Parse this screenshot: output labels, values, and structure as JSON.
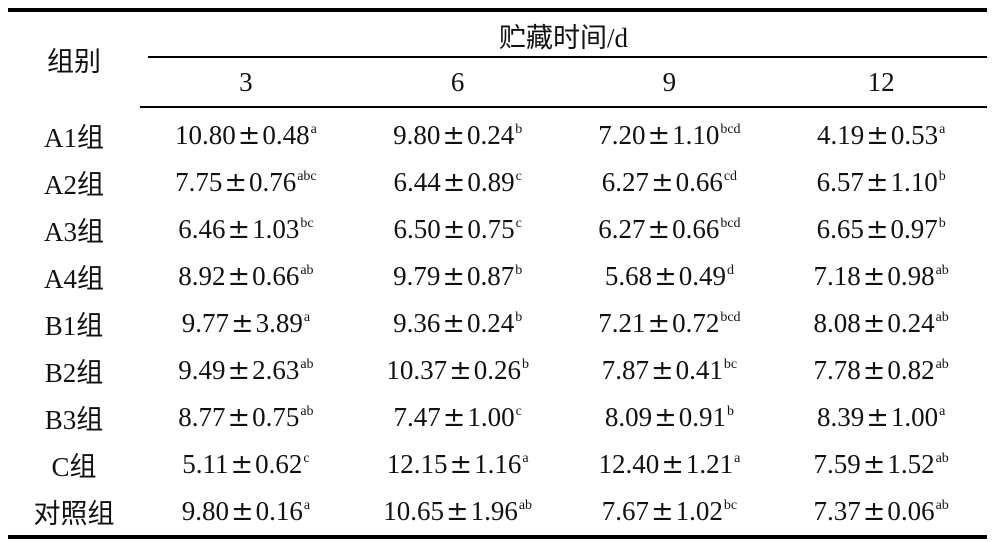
{
  "table": {
    "group_header": "组别",
    "time_header": "贮藏时间/d",
    "days": [
      "3",
      "6",
      "9",
      "12"
    ],
    "rows": [
      {
        "group": "A1组",
        "cells": [
          {
            "mean": "10.80",
            "sd": "0.48",
            "sig": "a"
          },
          {
            "mean": "9.80",
            "sd": "0.24",
            "sig": "b"
          },
          {
            "mean": "7.20",
            "sd": "1.10",
            "sig": "bcd"
          },
          {
            "mean": "4.19",
            "sd": "0.53",
            "sig": "a"
          }
        ]
      },
      {
        "group": "A2组",
        "cells": [
          {
            "mean": "7.75",
            "sd": "0.76",
            "sig": "abc"
          },
          {
            "mean": "6.44",
            "sd": "0.89",
            "sig": "c"
          },
          {
            "mean": "6.27",
            "sd": "0.66",
            "sig": "cd"
          },
          {
            "mean": "6.57",
            "sd": "1.10",
            "sig": "b"
          }
        ]
      },
      {
        "group": "A3组",
        "cells": [
          {
            "mean": "6.46",
            "sd": "1.03",
            "sig": "bc"
          },
          {
            "mean": "6.50",
            "sd": "0.75",
            "sig": "c"
          },
          {
            "mean": "6.27",
            "sd": "0.66",
            "sig": "bcd"
          },
          {
            "mean": "6.65",
            "sd": "0.97",
            "sig": "b"
          }
        ]
      },
      {
        "group": "A4组",
        "cells": [
          {
            "mean": "8.92",
            "sd": "0.66",
            "sig": "ab"
          },
          {
            "mean": "9.79",
            "sd": "0.87",
            "sig": "b"
          },
          {
            "mean": "5.68",
            "sd": "0.49",
            "sig": "d"
          },
          {
            "mean": "7.18",
            "sd": "0.98",
            "sig": "ab"
          }
        ]
      },
      {
        "group": "B1组",
        "cells": [
          {
            "mean": "9.77",
            "sd": "3.89",
            "sig": "a"
          },
          {
            "mean": "9.36",
            "sd": "0.24",
            "sig": "b"
          },
          {
            "mean": "7.21",
            "sd": "0.72",
            "sig": "bcd"
          },
          {
            "mean": "8.08",
            "sd": "0.24",
            "sig": "ab"
          }
        ]
      },
      {
        "group": "B2组",
        "cells": [
          {
            "mean": "9.49",
            "sd": "2.63",
            "sig": "ab"
          },
          {
            "mean": "10.37",
            "sd": "0.26",
            "sig": "b"
          },
          {
            "mean": "7.87",
            "sd": "0.41",
            "sig": "bc"
          },
          {
            "mean": "7.78",
            "sd": "0.82",
            "sig": "ab"
          }
        ]
      },
      {
        "group": "B3组",
        "cells": [
          {
            "mean": "8.77",
            "sd": "0.75",
            "sig": "ab"
          },
          {
            "mean": "7.47",
            "sd": "1.00",
            "sig": "c"
          },
          {
            "mean": "8.09",
            "sd": "0.91",
            "sig": "b"
          },
          {
            "mean": "8.39",
            "sd": "1.00",
            "sig": "a"
          }
        ]
      },
      {
        "group": "C组",
        "cells": [
          {
            "mean": "5.11",
            "sd": "0.62",
            "sig": "c"
          },
          {
            "mean": "12.15",
            "sd": "1.16",
            "sig": "a"
          },
          {
            "mean": "12.40",
            "sd": "1.21",
            "sig": "a"
          },
          {
            "mean": "7.59",
            "sd": "1.52",
            "sig": "ab"
          }
        ]
      },
      {
        "group": "对照组",
        "cells": [
          {
            "mean": "9.80",
            "sd": "0.16",
            "sig": "a"
          },
          {
            "mean": "10.65",
            "sd": "1.96",
            "sig": "ab"
          },
          {
            "mean": "7.67",
            "sd": "1.02",
            "sig": "bc"
          },
          {
            "mean": "7.37",
            "sd": "0.06",
            "sig": "ab"
          }
        ]
      }
    ]
  }
}
